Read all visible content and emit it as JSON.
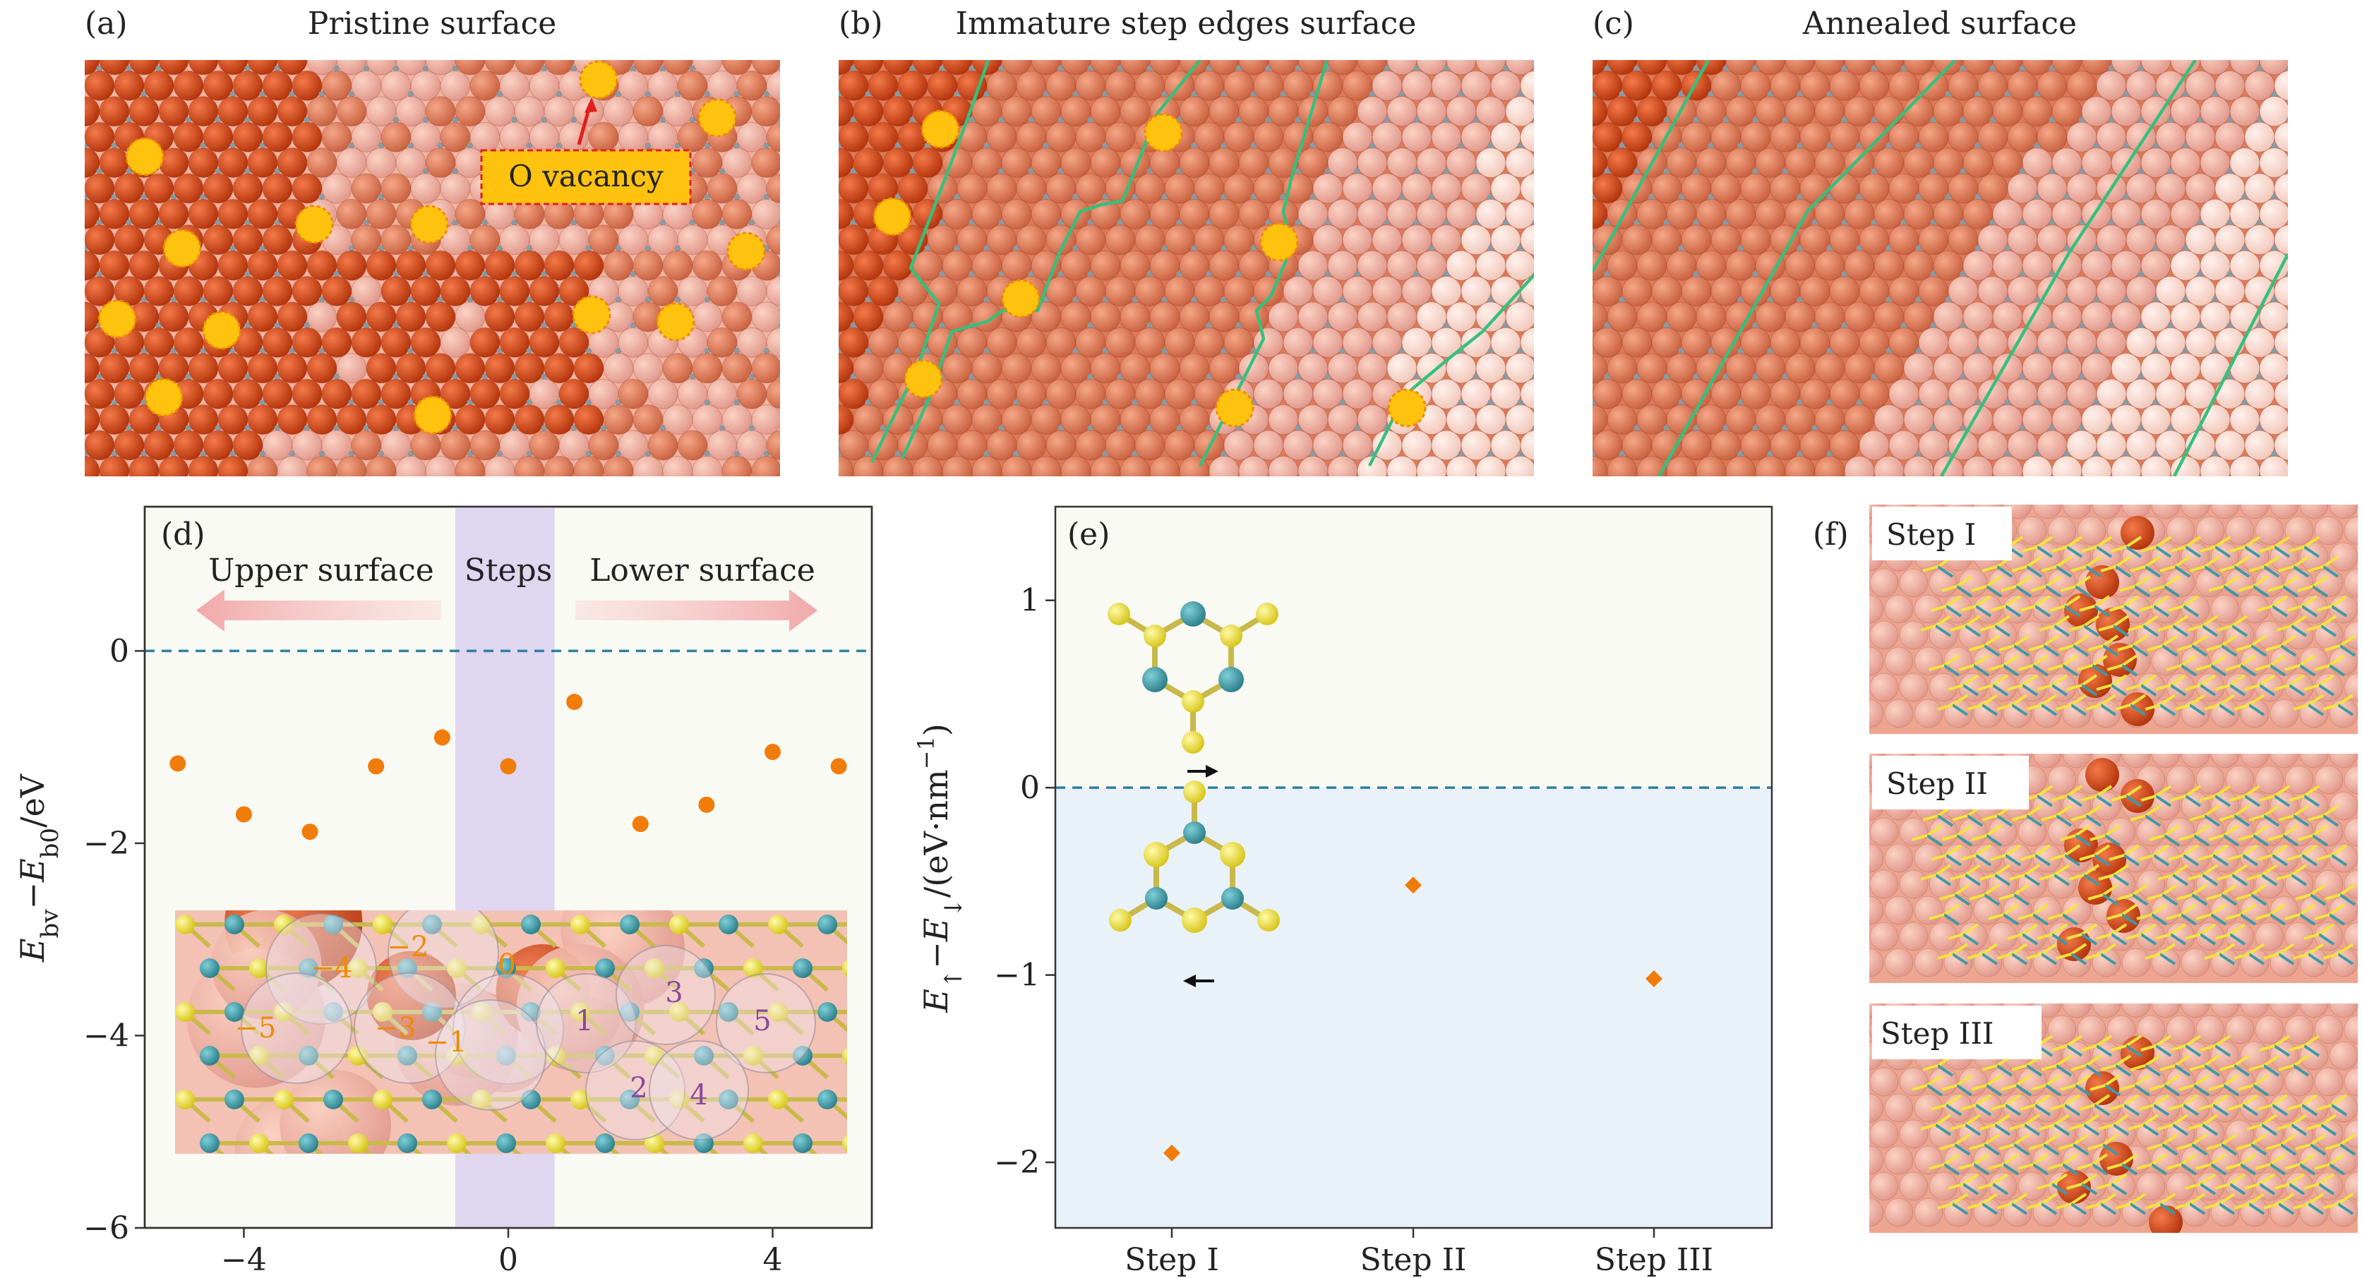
{
  "colors": {
    "atom_dark": "#c7400f",
    "atom_mid": "#de7a58",
    "atom_light": "#f3b3a1",
    "atom_pale": "#fbe1d8",
    "vacancy": "#ffc20e",
    "vacancy_edge": "#f08a00",
    "step_line": "#35c07c",
    "marker": "#f07c0a",
    "dashed": "#2f7fa3",
    "steps_band": "#d9cfee",
    "panel_e_lower": "#e9f1f9",
    "panel_e_upper": "#fafaf5",
    "sulfur": "#f3e43d",
    "metal": "#3d9aa6"
  },
  "panels": {
    "a": {
      "letter": "(a)",
      "title": "Pristine surface",
      "callout": "O vacancy"
    },
    "b": {
      "letter": "(b)",
      "title": "Immature step edges surface"
    },
    "c": {
      "letter": "(c)",
      "title": "Annealed surface"
    },
    "d": {
      "letter": "(d)",
      "regions": [
        "Upper surface",
        "Steps",
        "Lower surface"
      ],
      "site_labels_neg": [
        "−4",
        "−2",
        "0",
        "−5",
        "−3",
        "−1"
      ],
      "site_labels_pos": [
        "1",
        "3",
        "5",
        "2",
        "4"
      ]
    },
    "e": {
      "letter": "(e)"
    },
    "f": {
      "letter": "(f)",
      "labels": [
        "Step I",
        "Step II",
        "Step III"
      ]
    }
  },
  "chart_data": [
    {
      "panel": "d",
      "type": "scatter",
      "title": "",
      "xlabel": "",
      "ylabel": "E_bv − E_b0/eV",
      "ylabel_parts": {
        "E": "E",
        "sub1": "bv",
        "minus": "−E",
        "sub2": "b0",
        "unit": "/eV"
      },
      "xlim": [
        -5.5,
        5.5
      ],
      "ylim": [
        -6,
        1.5
      ],
      "xticks": [
        -4,
        0,
        4
      ],
      "xtick_labels": [
        "−4",
        "0",
        "4"
      ],
      "yticks": [
        0,
        -2,
        -4,
        -6
      ],
      "ytick_labels": [
        "0",
        "−2",
        "−4",
        "−6"
      ],
      "reference_line": 0,
      "steps_band": [
        -0.8,
        0.7
      ],
      "x": [
        -5,
        -4,
        -3,
        -2,
        -1,
        0,
        1,
        2,
        3,
        4,
        5
      ],
      "y": [
        -1.17,
        -1.7,
        -1.88,
        -1.2,
        -0.9,
        -1.2,
        -0.53,
        -1.8,
        -1.6,
        -1.05,
        -1.2
      ]
    },
    {
      "panel": "e",
      "type": "scatter",
      "title": "",
      "xlabel": "",
      "ylabel": "E↑−E↓/(eV·nm⁻¹)",
      "ylabel_parts": {
        "E1": "E",
        "sub1": "↑",
        "minus": "−E",
        "sub2": "↓",
        "unit": "/(eV·nm",
        "exp": "−1",
        "close": ")"
      },
      "categories": [
        "Step I",
        "Step II",
        "Step III"
      ],
      "ylim": [
        -2.35,
        1.5
      ],
      "yticks": [
        1,
        0,
        -1,
        -2
      ],
      "ytick_labels": [
        "1",
        "0",
        "−1",
        "−2"
      ],
      "reference_line": 0,
      "values": [
        -1.95,
        -0.52,
        -1.02
      ]
    }
  ]
}
